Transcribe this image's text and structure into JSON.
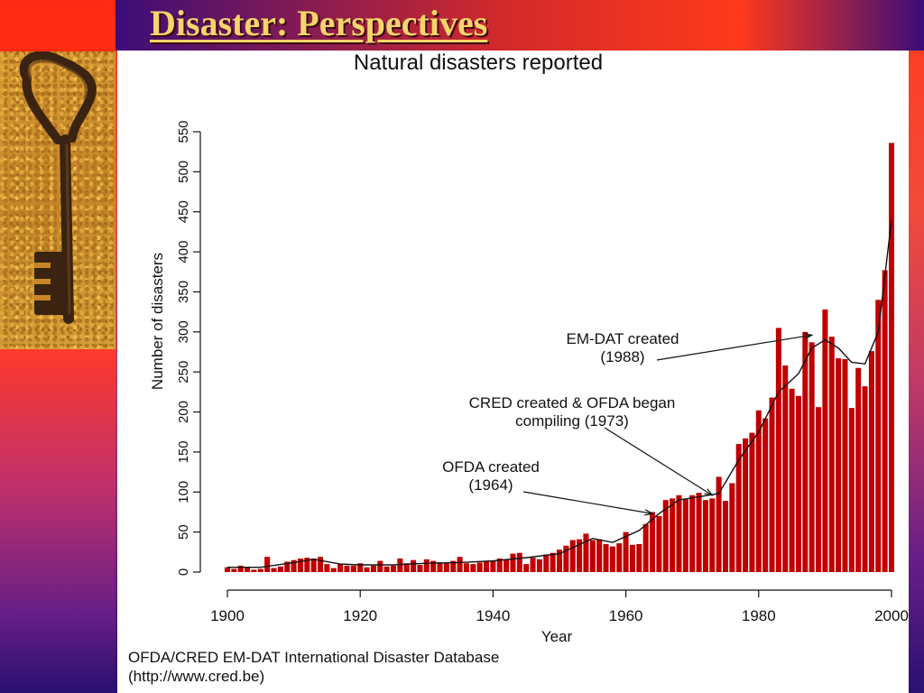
{
  "slide": {
    "title": "Disaster: Perspectives",
    "image_label": "rusty-key"
  },
  "chart_data": {
    "type": "bar",
    "title": "Natural disasters reported",
    "xlabel": "Year",
    "ylabel": "Number of disasters",
    "xlim": [
      1900,
      2000
    ],
    "ylim": [
      0,
      550
    ],
    "xticks": [
      1900,
      1920,
      1940,
      1960,
      1980,
      2000
    ],
    "yticks": [
      0,
      50,
      100,
      150,
      200,
      250,
      300,
      350,
      400,
      450,
      500,
      550
    ],
    "bar_color": "#c00000",
    "years": [
      1900,
      1901,
      1902,
      1903,
      1904,
      1905,
      1906,
      1907,
      1908,
      1909,
      1910,
      1911,
      1912,
      1913,
      1914,
      1915,
      1916,
      1917,
      1918,
      1919,
      1920,
      1921,
      1922,
      1923,
      1924,
      1925,
      1926,
      1927,
      1928,
      1929,
      1930,
      1931,
      1932,
      1933,
      1934,
      1935,
      1936,
      1937,
      1938,
      1939,
      1940,
      1941,
      1942,
      1943,
      1944,
      1945,
      1946,
      1947,
      1948,
      1949,
      1950,
      1951,
      1952,
      1953,
      1954,
      1955,
      1956,
      1957,
      1958,
      1959,
      1960,
      1961,
      1962,
      1963,
      1964,
      1965,
      1966,
      1967,
      1968,
      1969,
      1970,
      1971,
      1972,
      1973,
      1974,
      1975,
      1976,
      1977,
      1978,
      1979,
      1980,
      1981,
      1982,
      1983,
      1984,
      1985,
      1986,
      1987,
      1988,
      1989,
      1990,
      1991,
      1992,
      1993,
      1994,
      1995,
      1996,
      1997,
      1998,
      1999,
      2000
    ],
    "values": [
      6,
      4,
      8,
      6,
      3,
      4,
      19,
      5,
      7,
      13,
      15,
      17,
      18,
      17,
      19,
      10,
      5,
      10,
      8,
      8,
      11,
      6,
      8,
      14,
      7,
      8,
      17,
      11,
      15,
      9,
      16,
      14,
      12,
      11,
      14,
      19,
      11,
      10,
      12,
      13,
      14,
      17,
      16,
      23,
      24,
      10,
      18,
      16,
      22,
      24,
      28,
      33,
      40,
      41,
      48,
      40,
      41,
      35,
      32,
      36,
      50,
      34,
      35,
      60,
      75,
      70,
      90,
      92,
      96,
      91,
      96,
      99,
      90,
      92,
      119,
      89,
      111,
      160,
      167,
      174,
      202,
      192,
      218,
      305,
      258,
      229,
      220,
      300,
      287,
      206,
      328,
      294,
      267,
      266,
      205,
      255,
      232,
      276,
      340,
      377,
      536
    ],
    "trend": [
      [
        1900,
        6
      ],
      [
        1905,
        6
      ],
      [
        1910,
        12
      ],
      [
        1913,
        16
      ],
      [
        1917,
        10
      ],
      [
        1920,
        9
      ],
      [
        1925,
        9
      ],
      [
        1930,
        11
      ],
      [
        1935,
        12
      ],
      [
        1940,
        14
      ],
      [
        1945,
        18
      ],
      [
        1950,
        23
      ],
      [
        1955,
        42
      ],
      [
        1958,
        37
      ],
      [
        1962,
        52
      ],
      [
        1965,
        73
      ],
      [
        1968,
        90
      ],
      [
        1971,
        94
      ],
      [
        1974,
        98
      ],
      [
        1977,
        140
      ],
      [
        1980,
        175
      ],
      [
        1983,
        225
      ],
      [
        1986,
        248
      ],
      [
        1988,
        280
      ],
      [
        1990,
        290
      ],
      [
        1992,
        280
      ],
      [
        1994,
        262
      ],
      [
        1996,
        260
      ],
      [
        1998,
        300
      ],
      [
        2000,
        440
      ]
    ],
    "annotations": [
      {
        "lines": [
          "EM-DAT created",
          "(1988)"
        ],
        "year": 1988,
        "value": 296
      },
      {
        "lines": [
          "CRED created & OFDA began",
          "compiling (1973)"
        ],
        "year": 1973,
        "value": 96
      },
      {
        "lines": [
          "OFDA created",
          "(1964)"
        ],
        "year": 1964,
        "value": 73
      }
    ],
    "source": [
      "OFDA/CRED EM-DAT International Disaster Database",
      "(http://www.cred.be)"
    ]
  }
}
